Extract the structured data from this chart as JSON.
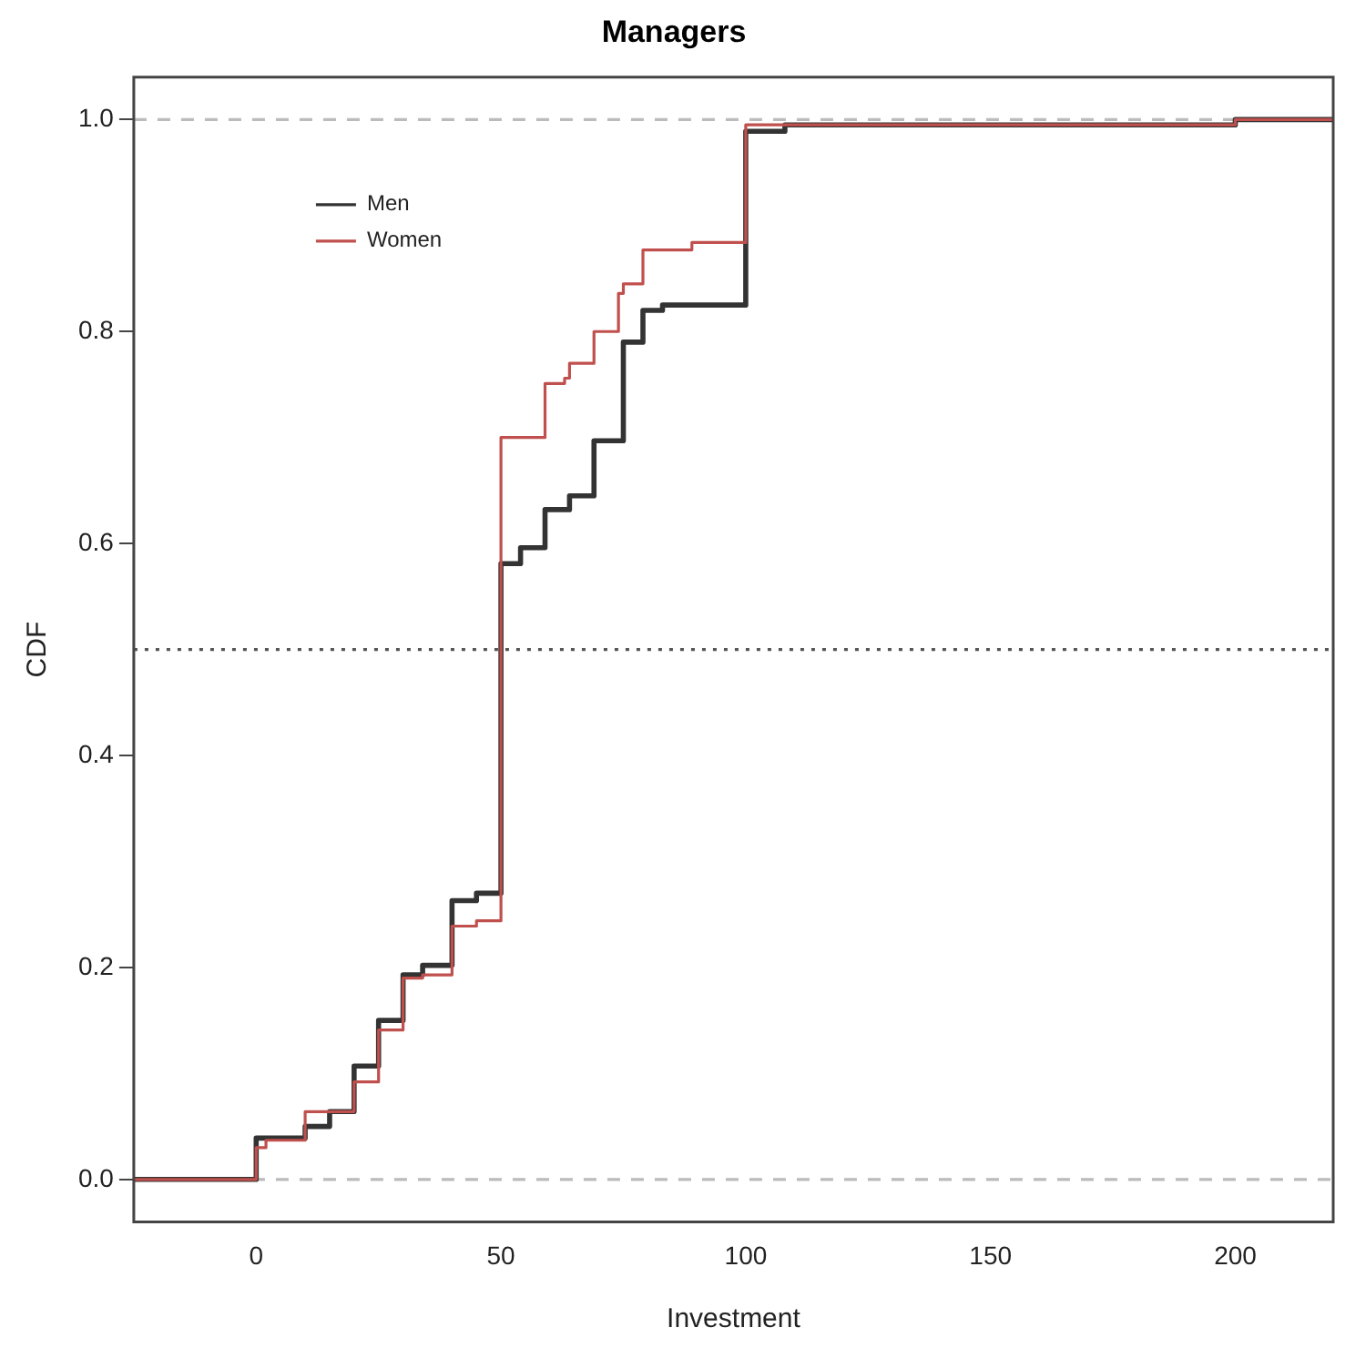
{
  "chart_data": {
    "type": "step",
    "title": "Managers",
    "xlabel": "Investment",
    "ylabel": "CDF",
    "xlim": [
      -25,
      220
    ],
    "xticks": [
      0,
      50,
      100,
      150,
      200
    ],
    "ylim": [
      -0.04,
      1.04
    ],
    "yticks": [
      {
        "value": 0,
        "label": "0.0"
      },
      0.2,
      0.4,
      0.6,
      0.8,
      {
        "value": 1,
        "label": "1.0"
      }
    ],
    "grid": false,
    "legend": "top left",
    "marker": "none",
    "line_style": "solid",
    "series": [
      {
        "name": "Men",
        "color": "#333333",
        "x": [
          -25,
          0,
          10,
          15,
          20,
          25,
          30,
          34,
          40,
          45,
          50,
          54,
          59,
          64,
          69,
          75,
          79,
          83,
          100,
          108,
          200,
          220
        ],
        "values": [
          0,
          0.039,
          0.05,
          0.064,
          0.107,
          0.15,
          0.193,
          0.202,
          0.263,
          0.27,
          0.581,
          0.596,
          0.632,
          0.645,
          0.697,
          0.79,
          0.82,
          0.825,
          0.989,
          0.995,
          1.0,
          1.0
        ]
      },
      {
        "name": "Women",
        "color": "#c0504d",
        "x": [
          -25,
          0,
          2,
          10,
          20,
          25,
          30,
          34,
          40,
          45,
          50,
          59,
          63,
          64,
          69,
          74,
          75,
          79,
          89,
          100,
          200,
          220
        ],
        "values": [
          0,
          0.03,
          0.037,
          0.064,
          0.092,
          0.141,
          0.19,
          0.193,
          0.239,
          0.244,
          0.7,
          0.751,
          0.756,
          0.77,
          0.8,
          0.836,
          0.845,
          0.877,
          0.884,
          0.995,
          1.0,
          1.0
        ]
      }
    ],
    "ref_lines": [
      {
        "axis": "y",
        "value": 0,
        "color": "#bbbbbb",
        "line_style": "dashed"
      },
      {
        "axis": "y",
        "value": 1,
        "color": "#bbbbbb",
        "line_style": "dashed"
      },
      {
        "axis": "y",
        "value": 0.5,
        "color": "#555555",
        "line_style": "dotted"
      }
    ]
  }
}
